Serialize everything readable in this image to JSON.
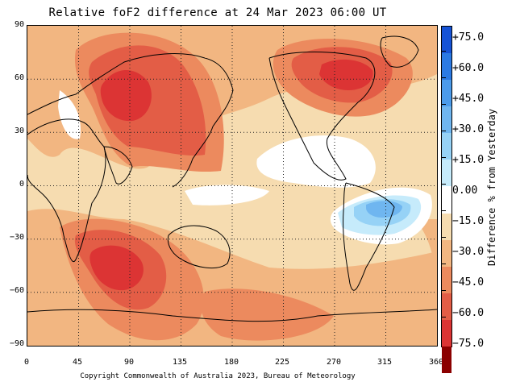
{
  "title": "Relative foF2 difference at 24 Mar 2023 06:00 UT",
  "copyright": "Copyright Commonwealth of Australia 2023, Bureau of Meteorology",
  "y_ticks": [
    "90",
    "60",
    "30",
    "0",
    "−30",
    "−60",
    "−90"
  ],
  "x_ticks": [
    "0",
    "45",
    "90",
    "135",
    "180",
    "225",
    "270",
    "315",
    "360"
  ],
  "colorbar": {
    "title": "Difference % from Yesterday",
    "labels": [
      "+75.0",
      "+60.0",
      "+45.0",
      "+30.0",
      "+15.0",
      "0.00",
      "−15.0",
      "−30.0",
      "−45.0",
      "−60.0",
      "−75.0"
    ],
    "colors": [
      "#1653d6",
      "#2b7ae3",
      "#4b9bea",
      "#6fb6f0",
      "#96d2f6",
      "#c6ebfb",
      "#ffffff",
      "#f6dcb0",
      "#f2b681",
      "#ec8a5e",
      "#e35d46",
      "#dc3434",
      "#8b0000"
    ]
  },
  "map": {
    "lon_range": [
      0,
      360
    ],
    "lat_range": [
      -90,
      90
    ],
    "grid": "dotted every 45° longitude and 30° latitude"
  }
}
